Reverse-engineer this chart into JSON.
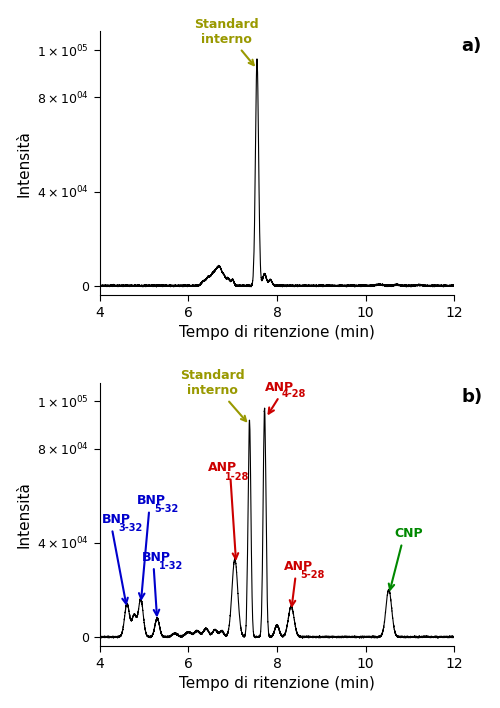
{
  "xlim": [
    4,
    12
  ],
  "ylim_a": [
    -4000,
    108000
  ],
  "ylim_b": [
    -4000,
    108000
  ],
  "xticks": [
    4,
    6,
    8,
    10,
    12
  ],
  "xlabel": "Tempo di ritenzione (min)",
  "ylabel": "Intensità",
  "panel_a_label": "a)",
  "panel_b_label": "b)",
  "olive_color": "#999900",
  "red_color": "#cc0000",
  "blue_color": "#0000cc",
  "green_color": "#008800",
  "line_color": "#000000",
  "background_color": "#ffffff"
}
